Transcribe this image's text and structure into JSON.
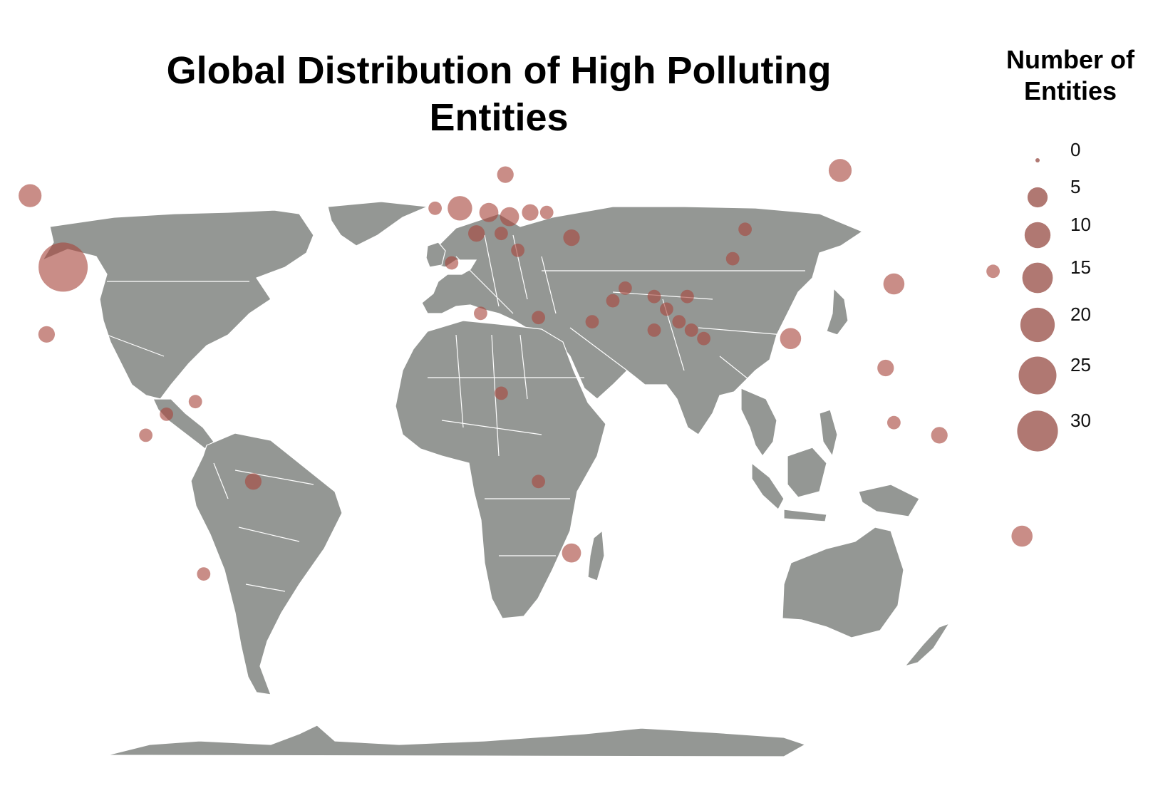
{
  "title": "Global Distribution of High Polluting Entities",
  "legend": {
    "title": "Number of Entities",
    "items": [
      {
        "label": "0",
        "value": 0
      },
      {
        "label": "5",
        "value": 5
      },
      {
        "label": "10",
        "value": 10
      },
      {
        "label": "15",
        "value": 15
      },
      {
        "label": "20",
        "value": 20
      },
      {
        "label": "25",
        "value": 25
      },
      {
        "label": "30",
        "value": 30
      }
    ]
  },
  "colors": {
    "land": "#949794",
    "borders": "#ffffff",
    "bubble": "#a8473d",
    "legend_bubble": "#b07872",
    "background": "#ffffff"
  },
  "chart_data": {
    "type": "bubble-map",
    "size_field": "Number of Entities",
    "points": [
      {
        "lon": -98,
        "lat": 39,
        "value": 32
      },
      {
        "lon": -106,
        "lat": 56,
        "value": 5
      },
      {
        "lon": -102,
        "lat": 23,
        "value": 2
      },
      {
        "lon": -2,
        "lat": 53,
        "value": 6
      },
      {
        "lon": -8,
        "lat": 53,
        "value": 1
      },
      {
        "lon": 9,
        "lat": 61,
        "value": 2
      },
      {
        "lon": 5,
        "lat": 52,
        "value": 3
      },
      {
        "lon": 10,
        "lat": 51,
        "value": 3
      },
      {
        "lon": 2,
        "lat": 47,
        "value": 2
      },
      {
        "lon": 8,
        "lat": 47,
        "value": 1
      },
      {
        "lon": 15,
        "lat": 52,
        "value": 2
      },
      {
        "lon": 19,
        "lat": 52,
        "value": 1
      },
      {
        "lon": 25,
        "lat": 46,
        "value": 2
      },
      {
        "lon": 12,
        "lat": 43,
        "value": 1
      },
      {
        "lon": -4,
        "lat": 40,
        "value": 1
      },
      {
        "lon": 90,
        "lat": 62,
        "value": 5
      },
      {
        "lon": 67,
        "lat": 48,
        "value": 1
      },
      {
        "lon": 64,
        "lat": 41,
        "value": 1
      },
      {
        "lon": 103,
        "lat": 35,
        "value": 4
      },
      {
        "lon": 127,
        "lat": 38,
        "value": 1
      },
      {
        "lon": 138,
        "lat": 36,
        "value": 2
      },
      {
        "lon": 78,
        "lat": 22,
        "value": 4
      },
      {
        "lon": 101,
        "lat": 15,
        "value": 2
      },
      {
        "lon": 103,
        "lat": 2,
        "value": 1
      },
      {
        "lon": 114,
        "lat": -1,
        "value": 2
      },
      {
        "lon": 134,
        "lat": -25,
        "value": 4
      },
      {
        "lon": 35,
        "lat": 31,
        "value": 1
      },
      {
        "lon": 38,
        "lat": 34,
        "value": 1
      },
      {
        "lon": 45,
        "lat": 32,
        "value": 1
      },
      {
        "lon": 53,
        "lat": 32,
        "value": 1
      },
      {
        "lon": 48,
        "lat": 29,
        "value": 1
      },
      {
        "lon": 45,
        "lat": 24,
        "value": 1
      },
      {
        "lon": 51,
        "lat": 26,
        "value": 1
      },
      {
        "lon": 54,
        "lat": 24,
        "value": 1
      },
      {
        "lon": 57,
        "lat": 22,
        "value": 1
      },
      {
        "lon": 3,
        "lat": 28,
        "value": 1
      },
      {
        "lon": 17,
        "lat": 27,
        "value": 1
      },
      {
        "lon": 30,
        "lat": 26,
        "value": 1
      },
      {
        "lon": 8,
        "lat": 9,
        "value": 1
      },
      {
        "lon": 17,
        "lat": -12,
        "value": 1
      },
      {
        "lon": 25,
        "lat": -29,
        "value": 3
      },
      {
        "lon": -52,
        "lat": -12,
        "value": 2
      },
      {
        "lon": -64,
        "lat": -34,
        "value": 1
      },
      {
        "lon": -73,
        "lat": 4,
        "value": 1
      },
      {
        "lon": -66,
        "lat": 7,
        "value": 1
      },
      {
        "lon": -78,
        "lat": -1,
        "value": 1
      }
    ]
  }
}
